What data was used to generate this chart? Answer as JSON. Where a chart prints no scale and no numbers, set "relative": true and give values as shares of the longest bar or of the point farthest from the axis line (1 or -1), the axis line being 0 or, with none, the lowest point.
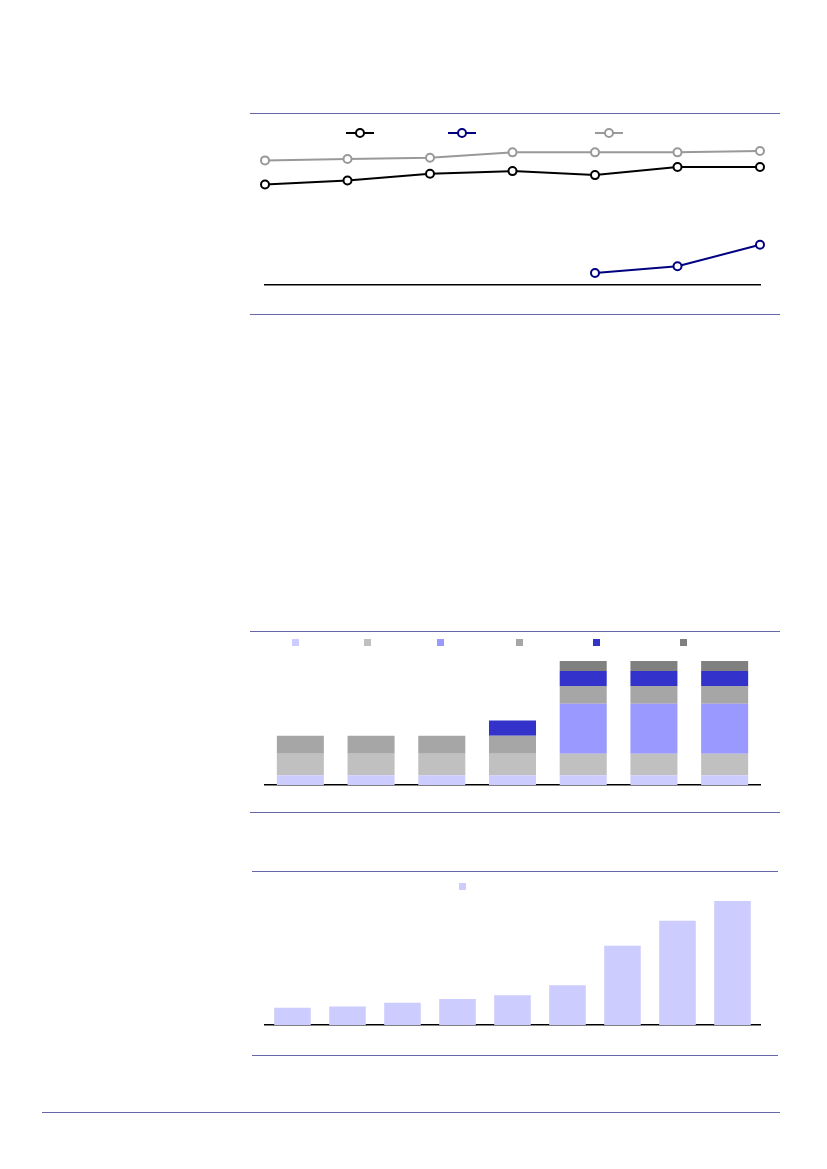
{
  "chart_data": [
    {
      "type": "line",
      "relative": true,
      "categories": [
        null,
        null,
        null,
        null,
        null,
        null,
        null
      ],
      "marker": "circle",
      "tick_labels": false,
      "grid": false,
      "series": [
        {
          "color": "#000000",
          "values": [
            0.75,
            0.78,
            0.83,
            0.85,
            0.82,
            0.88,
            0.88
          ]
        },
        {
          "color": "#000080",
          "values": [
            null,
            null,
            null,
            null,
            0.09,
            0.14,
            0.3
          ]
        },
        {
          "color": "#999999",
          "values": [
            0.93,
            0.94,
            0.95,
            0.99,
            0.99,
            0.99,
            1
          ]
        }
      ]
    },
    {
      "type": "bar",
      "relative": true,
      "stacked": true,
      "categories": [
        null,
        null,
        null,
        null,
        null,
        null,
        null
      ],
      "tick_labels": false,
      "grid": false,
      "series": [
        {
          "color": "#ccccff",
          "values": [
            0.078,
            0.078,
            0.078,
            0.078,
            0.078,
            0.078,
            0.078
          ]
        },
        {
          "color": "#c0c0c0",
          "values": [
            0.175,
            0.175,
            0.175,
            0.175,
            0.175,
            0.175,
            0.175
          ]
        },
        {
          "color": "#9999ff",
          "values": [
            null,
            null,
            null,
            null,
            0.402,
            0.402,
            0.402
          ]
        },
        {
          "color": "#a6a6a6",
          "values": [
            0.144,
            0.144,
            0.144,
            0.144,
            0.144,
            0.144,
            0.144
          ]
        },
        {
          "color": "#3333cc",
          "values": [
            null,
            null,
            null,
            0.124,
            0.121,
            0.121,
            0.121
          ]
        },
        {
          "color": "#808080",
          "values": [
            null,
            null,
            null,
            null,
            0.08,
            0.08,
            0.08
          ]
        }
      ]
    },
    {
      "type": "bar",
      "relative": true,
      "categories": [
        null,
        null,
        null,
        null,
        null,
        null,
        null,
        null,
        null
      ],
      "tick_labels": false,
      "grid": false,
      "series": [
        {
          "color": "#ccccff",
          "values": [
            0.14,
            0.15,
            0.18,
            0.21,
            0.24,
            0.32,
            0.64,
            0.84,
            1
          ]
        }
      ]
    }
  ]
}
